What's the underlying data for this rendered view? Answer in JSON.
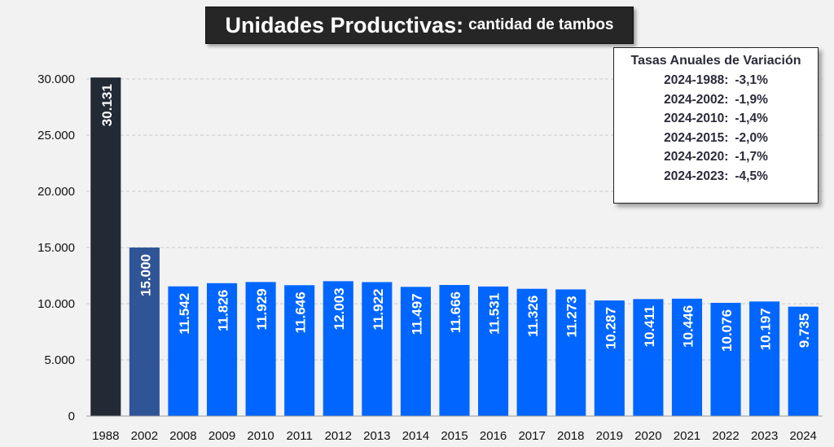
{
  "chart_data": {
    "type": "bar",
    "title": "Unidades Productivas:",
    "subtitle": "cantidad de tambos",
    "categories": [
      "1988",
      "2002",
      "2008",
      "2009",
      "2010",
      "2011",
      "2012",
      "2013",
      "2014",
      "2015",
      "2016",
      "2017",
      "2018",
      "2019",
      "2020",
      "2021",
      "2022",
      "2023",
      "2024"
    ],
    "values": [
      30131,
      15000,
      11542,
      11826,
      11929,
      11646,
      12003,
      11922,
      11497,
      11666,
      11531,
      11326,
      11273,
      10287,
      10411,
      10446,
      10076,
      10197,
      9735
    ],
    "value_labels": [
      "30.131",
      "15.000",
      "11.542",
      "11.826",
      "11.929",
      "11.646",
      "12.003",
      "11.922",
      "11.497",
      "11.666",
      "11.531",
      "11.326",
      "11.273",
      "10.287",
      "10.411",
      "10.446",
      "10.076",
      "10.197",
      "9.735"
    ],
    "ylim": [
      0,
      30000
    ],
    "yticks": [
      0,
      5000,
      10000,
      15000,
      20000,
      25000,
      30000
    ],
    "ytick_labels": [
      "0",
      "5.000",
      "10.000",
      "15.000",
      "20.000",
      "25.000",
      "30.000"
    ],
    "xlabel": "",
    "ylabel": "",
    "grid": true,
    "colors": {
      "bar_1988": "#222a35",
      "bar_2002": "#2f5597",
      "bar_default": "#0066ff",
      "grid": "#c8c8c8",
      "label_text": "#ffffff"
    }
  },
  "rates_box": {
    "title": "Tasas Anuales de Variación",
    "rows": [
      {
        "period": "2024-1988:",
        "value": "-3,1%"
      },
      {
        "period": "2024-2002:",
        "value": "-1,9%"
      },
      {
        "period": "2024-2010:",
        "value": "-1,4%"
      },
      {
        "period": "2024-2015:",
        "value": "-2,0%"
      },
      {
        "period": "2024-2020:",
        "value": "-1,7%"
      },
      {
        "period": "2024-2023:",
        "value": "-4,5%"
      }
    ]
  }
}
